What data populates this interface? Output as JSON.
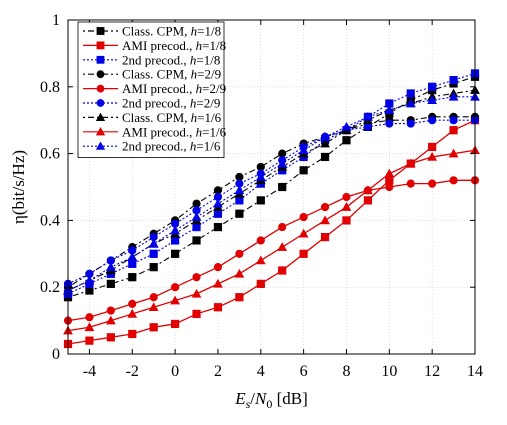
{
  "chart_data": {
    "type": "line",
    "title": "",
    "xlabel_parts": {
      "E": "E",
      "s": "s",
      "slash": "/",
      "N": "N",
      "zero": "0",
      "unit": " [dB]"
    },
    "ylabel": "η(bit/s/Hz)",
    "xlim": [
      -5,
      14
    ],
    "ylim": [
      0,
      1
    ],
    "xticks": [
      -4,
      -2,
      0,
      2,
      4,
      6,
      8,
      10,
      12,
      14
    ],
    "yticks": [
      0,
      0.2,
      0.4,
      0.6,
      0.8,
      1
    ],
    "grid": true,
    "legend_position": "top-left",
    "x": [
      -5,
      -4,
      -3,
      -2,
      -1,
      0,
      1,
      2,
      3,
      4,
      5,
      6,
      7,
      8,
      9,
      10,
      11,
      12,
      13,
      14
    ],
    "series": [
      {
        "name_prefix": "Class. CPM, ",
        "h": "1/8",
        "color": "#000000",
        "dash": "2,3,6,3",
        "marker": "square",
        "values": [
          0.17,
          0.19,
          0.21,
          0.23,
          0.26,
          0.3,
          0.34,
          0.38,
          0.42,
          0.46,
          0.5,
          0.55,
          0.59,
          0.64,
          0.68,
          0.72,
          0.76,
          0.79,
          0.81,
          0.83
        ]
      },
      {
        "name_prefix": "AMI precod., ",
        "h": "1/8",
        "color": "#e00000",
        "dash": "",
        "marker": "square",
        "values": [
          0.03,
          0.04,
          0.05,
          0.06,
          0.08,
          0.09,
          0.12,
          0.14,
          0.17,
          0.21,
          0.25,
          0.3,
          0.35,
          0.4,
          0.46,
          0.52,
          0.57,
          0.62,
          0.67,
          0.7
        ]
      },
      {
        "name_prefix": "2nd precod., ",
        "h": "1/8",
        "color": "#0000e6",
        "dash": "2,2",
        "marker": "square",
        "values": [
          0.18,
          0.21,
          0.24,
          0.27,
          0.3,
          0.34,
          0.38,
          0.42,
          0.46,
          0.51,
          0.55,
          0.59,
          0.64,
          0.67,
          0.71,
          0.75,
          0.78,
          0.8,
          0.82,
          0.84
        ]
      },
      {
        "name_prefix": "Class. CPM, ",
        "h": "2/9",
        "color": "#000000",
        "dash": "2,3,6,3",
        "marker": "circle",
        "values": [
          0.2,
          0.24,
          0.28,
          0.32,
          0.36,
          0.4,
          0.45,
          0.49,
          0.53,
          0.56,
          0.6,
          0.63,
          0.65,
          0.67,
          0.69,
          0.7,
          0.7,
          0.71,
          0.71,
          0.71
        ]
      },
      {
        "name_prefix": "AMI precod., ",
        "h": "2/9",
        "color": "#e00000",
        "dash": "",
        "marker": "circle",
        "values": [
          0.1,
          0.11,
          0.13,
          0.15,
          0.17,
          0.2,
          0.23,
          0.26,
          0.3,
          0.34,
          0.38,
          0.41,
          0.44,
          0.47,
          0.49,
          0.5,
          0.51,
          0.51,
          0.52,
          0.52
        ]
      },
      {
        "name_prefix": "2nd precod., ",
        "h": "2/9",
        "color": "#0000e6",
        "dash": "2,2",
        "marker": "circle",
        "values": [
          0.21,
          0.24,
          0.28,
          0.31,
          0.35,
          0.39,
          0.43,
          0.47,
          0.51,
          0.54,
          0.58,
          0.62,
          0.65,
          0.67,
          0.68,
          0.69,
          0.69,
          0.7,
          0.7,
          0.7
        ]
      },
      {
        "name_prefix": "Class. CPM, ",
        "h": "1/6",
        "color": "#000000",
        "dash": "2,3,6,3",
        "marker": "triangle",
        "values": [
          0.19,
          0.22,
          0.25,
          0.29,
          0.33,
          0.36,
          0.4,
          0.44,
          0.48,
          0.52,
          0.56,
          0.6,
          0.63,
          0.67,
          0.7,
          0.73,
          0.75,
          0.77,
          0.78,
          0.79
        ]
      },
      {
        "name_prefix": "AMI precod., ",
        "h": "1/6",
        "color": "#e00000",
        "dash": "",
        "marker": "triangle",
        "values": [
          0.07,
          0.08,
          0.1,
          0.12,
          0.14,
          0.16,
          0.18,
          0.21,
          0.24,
          0.28,
          0.32,
          0.36,
          0.4,
          0.44,
          0.49,
          0.54,
          0.57,
          0.59,
          0.6,
          0.61
        ]
      },
      {
        "name_prefix": "2nd precod., ",
        "h": "1/6",
        "color": "#0000e6",
        "dash": "2,2",
        "marker": "triangle",
        "values": [
          0.19,
          0.22,
          0.26,
          0.29,
          0.33,
          0.37,
          0.41,
          0.45,
          0.49,
          0.53,
          0.57,
          0.61,
          0.65,
          0.68,
          0.71,
          0.73,
          0.75,
          0.76,
          0.77,
          0.77
        ]
      }
    ]
  }
}
